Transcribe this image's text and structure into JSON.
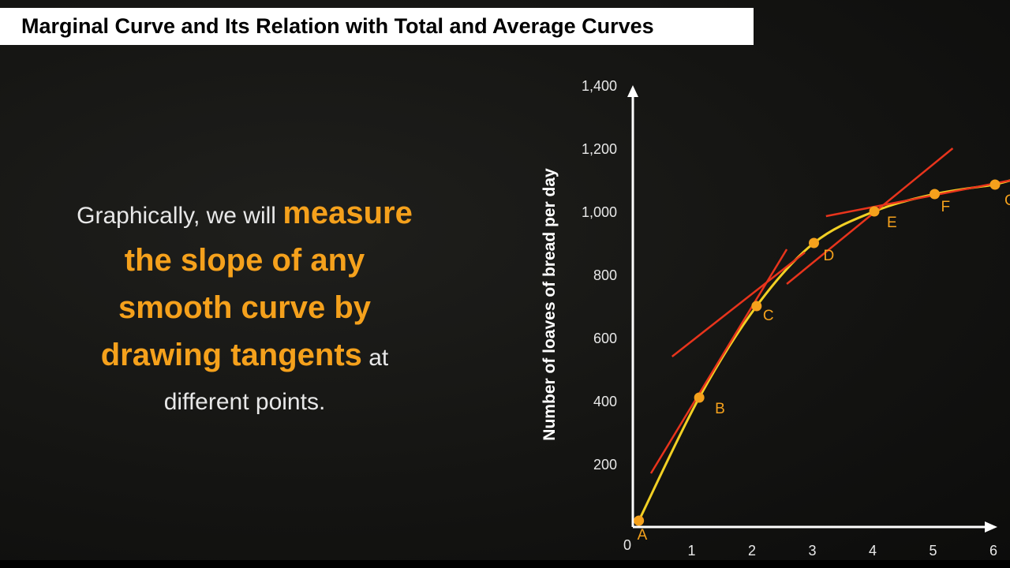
{
  "header": {
    "title": "Marginal Curve and Its Relation with Total and Average Curves"
  },
  "body": {
    "lead": "Graphically, we will ",
    "highlight1": "measure",
    "highlight2": "the slope of any",
    "highlight3": "smooth curve by",
    "highlight4": "drawing tangents",
    "after": " at",
    "tail": "different points."
  },
  "colors": {
    "accent": "#f5a11c",
    "curve": "#f2d024",
    "tangent": "#e8341c",
    "axis": "#ffffff"
  },
  "chart_data": {
    "type": "line",
    "xlabel": "",
    "ylabel": "Number of loaves of bread per day",
    "xlim": [
      0,
      6
    ],
    "ylim": [
      0,
      1400
    ],
    "x_ticks": [
      "1",
      "2",
      "3",
      "4",
      "5",
      "6"
    ],
    "y_ticks": [
      "200",
      "400",
      "600",
      "800",
      "1,000",
      "1,200",
      "1,400"
    ],
    "origin_label": "0",
    "points": [
      {
        "label": "A",
        "x": 0.1,
        "y": 20
      },
      {
        "label": "B",
        "x": 1.1,
        "y": 410
      },
      {
        "label": "C",
        "x": 2.05,
        "y": 700
      },
      {
        "label": "D",
        "x": 3.0,
        "y": 900
      },
      {
        "label": "E",
        "x": 4.0,
        "y": 1000
      },
      {
        "label": "F",
        "x": 5.0,
        "y": 1055
      },
      {
        "label": "G",
        "x": 6.0,
        "y": 1085
      }
    ],
    "tangents": [
      {
        "at": "B",
        "from": [
          0.3,
          170
        ],
        "to": [
          2.55,
          880
        ]
      },
      {
        "at": "C",
        "from": [
          0.65,
          540
        ],
        "to": [
          2.85,
          870
        ]
      },
      {
        "at": "D",
        "from": [
          2.55,
          770
        ],
        "to": [
          5.3,
          1200
        ]
      },
      {
        "at": "F",
        "from": [
          3.2,
          985
        ],
        "to": [
          6.3,
          1100
        ]
      }
    ]
  }
}
